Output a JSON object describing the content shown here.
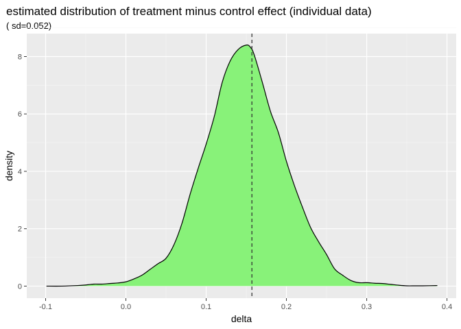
{
  "chart_data": {
    "type": "area",
    "title": "estimated distribution of treatment minus control effect (individual data)",
    "subtitle": "( sd=0.052)",
    "xlabel": "delta",
    "ylabel": "density",
    "xlim": [
      -0.1235,
      0.4115
    ],
    "ylim": [
      -0.42,
      8.8
    ],
    "x_ticks": [
      -0.1,
      0.0,
      0.1,
      0.2,
      0.3,
      0.4
    ],
    "x_tick_labels": [
      "-0.1",
      "0.0",
      "0.1",
      "0.2",
      "0.3",
      "0.4"
    ],
    "y_ticks": [
      0,
      2,
      4,
      6,
      8
    ],
    "y_tick_labels": [
      "0",
      "2",
      "4",
      "6",
      "8"
    ],
    "grid": true,
    "reference_line": {
      "x": 0.157,
      "style": "dashed"
    },
    "fill_color": "#88f279",
    "line_color": "#000000",
    "panel_background": "#ebebeb",
    "x": [
      -0.099,
      -0.08,
      -0.06,
      -0.05,
      -0.04,
      -0.03,
      -0.02,
      -0.01,
      0.0,
      0.01,
      0.02,
      0.03,
      0.04,
      0.05,
      0.06,
      0.07,
      0.08,
      0.09,
      0.1,
      0.11,
      0.12,
      0.13,
      0.14,
      0.15,
      0.155,
      0.16,
      0.17,
      0.18,
      0.19,
      0.2,
      0.21,
      0.22,
      0.23,
      0.24,
      0.25,
      0.26,
      0.27,
      0.28,
      0.29,
      0.3,
      0.31,
      0.32,
      0.33,
      0.34,
      0.35,
      0.36,
      0.37,
      0.388
    ],
    "y": [
      0.0,
      0.0,
      0.02,
      0.04,
      0.07,
      0.07,
      0.09,
      0.11,
      0.15,
      0.25,
      0.38,
      0.58,
      0.78,
      0.97,
      1.45,
      2.2,
      3.2,
      4.1,
      4.95,
      5.9,
      7.1,
      7.85,
      8.25,
      8.4,
      8.33,
      8.05,
      7.1,
      6.1,
      5.35,
      4.35,
      3.5,
      2.75,
      2.05,
      1.55,
      1.1,
      0.6,
      0.38,
      0.2,
      0.12,
      0.12,
      0.1,
      0.09,
      0.06,
      0.03,
      0.01,
      0.01,
      0.01,
      0.02
    ]
  }
}
